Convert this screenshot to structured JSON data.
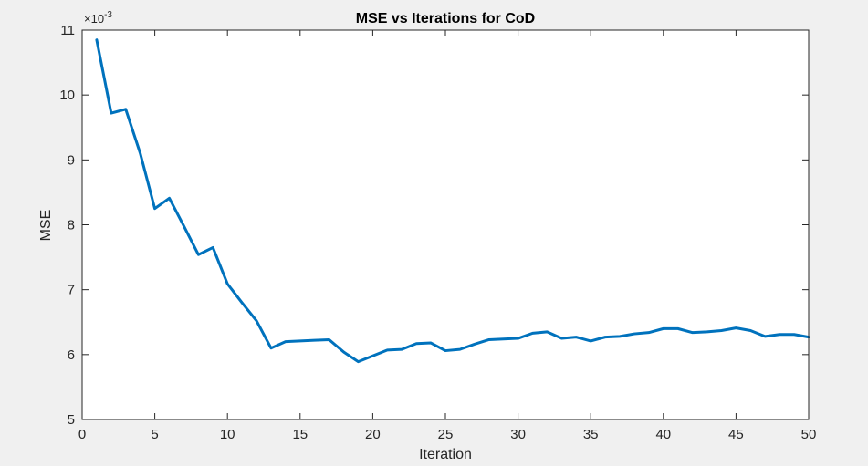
{
  "chart_data": {
    "type": "line",
    "title": "MSE vs Iterations for CoD",
    "xlabel": "Iteration",
    "ylabel": "MSE",
    "xlim": [
      0,
      50
    ],
    "ylim": [
      5,
      11
    ],
    "x_ticks": [
      "0",
      "5",
      "10",
      "15",
      "20",
      "25",
      "30",
      "35",
      "40",
      "45",
      "50"
    ],
    "y_ticks": [
      "5",
      "6",
      "7",
      "8",
      "9",
      "10",
      "11"
    ],
    "y_exponent_base": "×10",
    "y_exponent_power": "-3",
    "grid": false,
    "line_color": "#0072bd",
    "series": [
      {
        "x": [
          1,
          2,
          3,
          4,
          5,
          6,
          7,
          8,
          9,
          10,
          11,
          12,
          13,
          14,
          15,
          16,
          17,
          18,
          19,
          20,
          21,
          22,
          23,
          24,
          25,
          26,
          27,
          28,
          29,
          30,
          31,
          32,
          33,
          34,
          35,
          36,
          37,
          38,
          39,
          40,
          41,
          42,
          43,
          44,
          45,
          46,
          47,
          48,
          49,
          50
        ],
        "y": [
          10.85,
          9.72,
          9.78,
          9.1,
          8.25,
          8.41,
          7.98,
          7.54,
          7.65,
          7.09,
          6.8,
          6.52,
          6.1,
          6.2,
          6.21,
          6.22,
          6.23,
          6.04,
          5.89,
          5.98,
          6.07,
          6.08,
          6.17,
          6.18,
          6.06,
          6.08,
          6.16,
          6.23,
          6.24,
          6.25,
          6.33,
          6.35,
          6.25,
          6.27,
          6.21,
          6.27,
          6.28,
          6.32,
          6.34,
          6.4,
          6.4,
          6.34,
          6.35,
          6.37,
          6.41,
          6.37,
          6.28,
          6.31,
          6.31,
          6.27
        ]
      }
    ]
  }
}
